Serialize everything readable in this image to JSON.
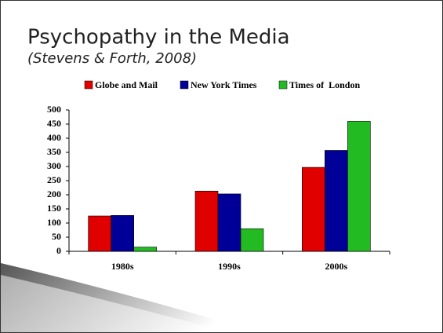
{
  "chart_data": {
    "type": "bar",
    "title": "Psychopathy in the Media",
    "subtitle": "(Stevens & Forth, 2008)",
    "categories": [
      "1980s",
      "1990s",
      "2000s"
    ],
    "series": [
      {
        "name": "Globe and Mail",
        "color": "#e00000",
        "values": [
          125,
          213,
          297
        ]
      },
      {
        "name": "New York Times",
        "color": "#000099",
        "values": [
          127,
          203,
          357
        ]
      },
      {
        "name": "Times of  London",
        "color": "#22bb22",
        "values": [
          15,
          80,
          460
        ]
      }
    ],
    "ylim": [
      0,
      500
    ],
    "yticks": [
      0,
      50,
      100,
      150,
      200,
      250,
      300,
      350,
      400,
      450,
      500
    ],
    "legend": "top"
  }
}
